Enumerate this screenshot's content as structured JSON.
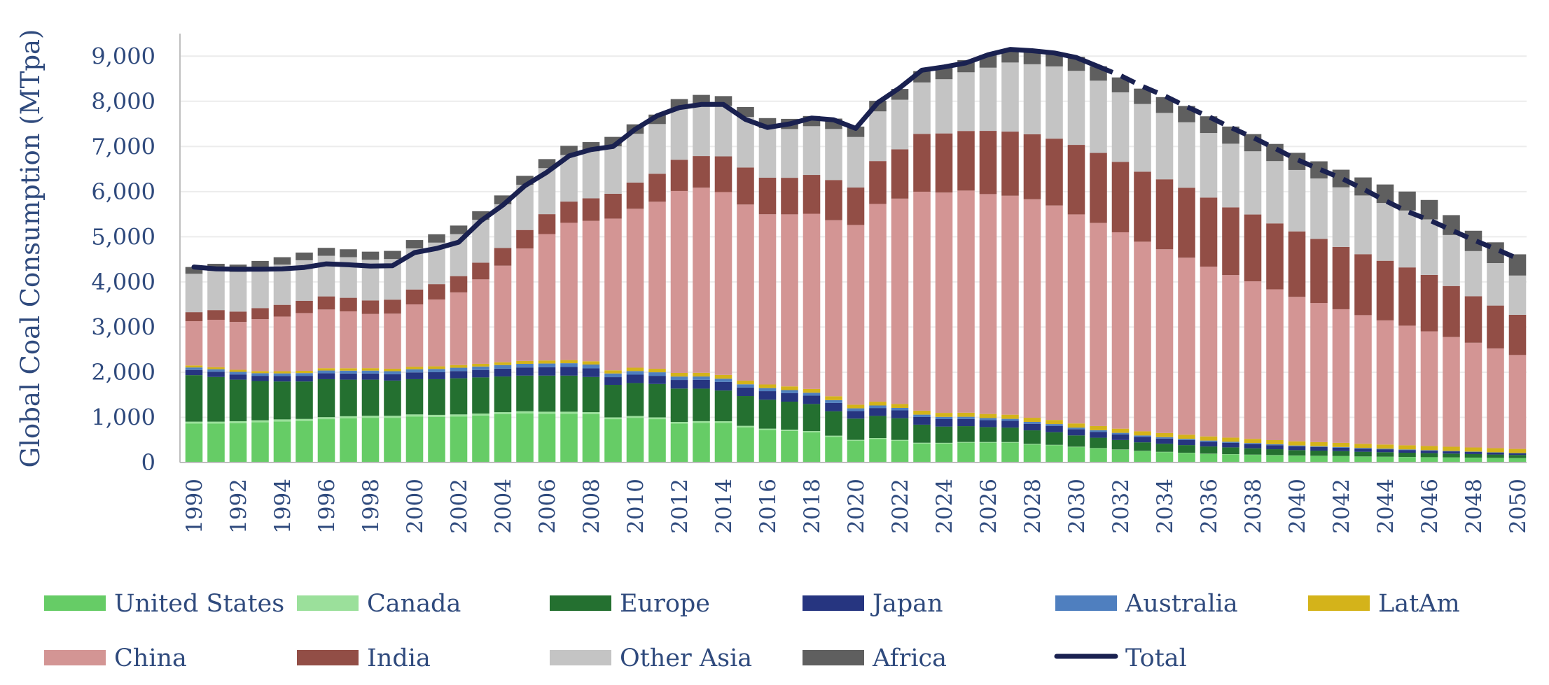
{
  "chart_data": {
    "type": "bar",
    "stacked": true,
    "ylabel": "Global Coal Consumption (MTpa)",
    "xlabel": "",
    "ylim": [
      0,
      9500
    ],
    "yticks": [
      0,
      1000,
      2000,
      3000,
      4000,
      5000,
      6000,
      7000,
      8000,
      9000
    ],
    "ytick_labels": [
      "0",
      "1,000",
      "2,000",
      "3,000",
      "4,000",
      "5,000",
      "6,000",
      "7,000",
      "8,000",
      "9,000"
    ],
    "grid": true,
    "legend_position": "bottom",
    "x": [
      1990,
      1991,
      1992,
      1993,
      1994,
      1995,
      1996,
      1997,
      1998,
      1999,
      2000,
      2001,
      2002,
      2003,
      2004,
      2005,
      2006,
      2007,
      2008,
      2009,
      2010,
      2011,
      2012,
      2013,
      2014,
      2015,
      2016,
      2017,
      2018,
      2019,
      2020,
      2021,
      2022,
      2023,
      2024,
      2025,
      2026,
      2027,
      2028,
      2029,
      2030,
      2031,
      2032,
      2033,
      2034,
      2035,
      2036,
      2037,
      2038,
      2039,
      2040,
      2041,
      2042,
      2043,
      2044,
      2045,
      2046,
      2047,
      2048,
      2049,
      2050
    ],
    "xtick_labels": [
      "1990",
      "1992",
      "1994",
      "1996",
      "1998",
      "2000",
      "2002",
      "2004",
      "2006",
      "2008",
      "2010",
      "2012",
      "2014",
      "2016",
      "2018",
      "2020",
      "2022",
      "2024",
      "2026",
      "2028",
      "2030",
      "2032",
      "2034",
      "2036",
      "2038",
      "2040",
      "2042",
      "2044",
      "2046",
      "2048",
      "2050"
    ],
    "series": [
      {
        "name": "United States",
        "color": "#66cc66",
        "values": [
          860,
          860,
          870,
          890,
          910,
          920,
          960,
          980,
          990,
          990,
          1020,
          1010,
          1020,
          1040,
          1070,
          1090,
          1080,
          1080,
          1070,
          960,
          990,
          960,
          860,
          880,
          880,
          780,
          720,
          700,
          670,
          570,
          480,
          520,
          480,
          420,
          420,
          440,
          440,
          440,
          400,
          380,
          340,
          310,
          280,
          250,
          230,
          210,
          190,
          180,
          170,
          160,
          150,
          145,
          140,
          130,
          125,
          120,
          115,
          110,
          105,
          100,
          95
        ]
      },
      {
        "name": "Canada",
        "color": "#9be09b",
        "values": [
          45,
          45,
          45,
          45,
          45,
          45,
          45,
          45,
          45,
          45,
          45,
          45,
          45,
          45,
          45,
          45,
          45,
          45,
          45,
          40,
          40,
          40,
          38,
          36,
          34,
          32,
          30,
          28,
          26,
          24,
          22,
          22,
          20,
          18,
          16,
          15,
          14,
          13,
          12,
          11,
          10,
          9,
          8,
          7,
          6,
          6,
          5,
          5,
          4,
          4,
          4,
          3,
          3,
          3,
          3,
          2,
          2,
          2,
          2,
          2,
          2
        ]
      },
      {
        "name": "Europe",
        "color": "#247030",
        "values": [
          1030,
          990,
          920,
          870,
          840,
          830,
          840,
          810,
          800,
          780,
          780,
          790,
          800,
          800,
          790,
          790,
          800,
          800,
          780,
          720,
          730,
          740,
          740,
          720,
          680,
          660,
          640,
          620,
          600,
          540,
          470,
          490,
          480,
          400,
          360,
          350,
          330,
          320,
          300,
          280,
          250,
          230,
          210,
          190,
          180,
          170,
          160,
          150,
          140,
          130,
          120,
          115,
          110,
          105,
          100,
          95,
          90,
          85,
          80,
          75,
          70
        ]
      },
      {
        "name": "Japan",
        "color": "#263580",
        "values": [
          115,
          115,
          115,
          115,
          120,
          125,
          130,
          135,
          135,
          140,
          150,
          155,
          160,
          165,
          175,
          180,
          185,
          190,
          190,
          170,
          185,
          180,
          190,
          195,
          190,
          190,
          190,
          190,
          185,
          185,
          170,
          175,
          175,
          170,
          165,
          160,
          155,
          150,
          145,
          140,
          135,
          130,
          125,
          120,
          115,
          110,
          105,
          100,
          95,
          90,
          85,
          80,
          75,
          70,
          65,
          60,
          55,
          50,
          45,
          40,
          35
        ]
      },
      {
        "name": "Australia",
        "color": "#4f7fbf",
        "values": [
          55,
          56,
          57,
          58,
          59,
          60,
          62,
          64,
          65,
          67,
          70,
          72,
          74,
          76,
          78,
          80,
          82,
          84,
          85,
          82,
          80,
          78,
          76,
          74,
          72,
          70,
          68,
          66,
          64,
          62,
          58,
          56,
          54,
          52,
          50,
          48,
          46,
          44,
          42,
          40,
          38,
          36,
          34,
          32,
          30,
          28,
          26,
          24,
          22,
          20,
          18,
          16,
          15,
          14,
          13,
          12,
          11,
          10,
          9,
          8,
          7
        ]
      },
      {
        "name": "LatAm",
        "color": "#d4b31a",
        "values": [
          45,
          45,
          46,
          47,
          48,
          50,
          52,
          54,
          55,
          55,
          57,
          58,
          59,
          60,
          62,
          65,
          68,
          70,
          72,
          70,
          75,
          78,
          80,
          82,
          84,
          82,
          80,
          82,
          84,
          86,
          80,
          84,
          86,
          88,
          88,
          90,
          90,
          92,
          92,
          92,
          92,
          92,
          92,
          92,
          92,
          92,
          92,
          92,
          92,
          92,
          92,
          92,
          92,
          92,
          92,
          92,
          92,
          92,
          92,
          92,
          92
        ]
      },
      {
        "name": "China",
        "color": "#d39594",
        "values": [
          980,
          1050,
          1060,
          1150,
          1210,
          1280,
          1300,
          1260,
          1200,
          1220,
          1380,
          1480,
          1610,
          1870,
          2140,
          2490,
          2800,
          3040,
          3110,
          3360,
          3520,
          3700,
          4030,
          4100,
          4050,
          3900,
          3770,
          3810,
          3880,
          3900,
          3980,
          4380,
          4550,
          4850,
          4880,
          4920,
          4870,
          4850,
          4840,
          4750,
          4630,
          4500,
          4350,
          4200,
          4070,
          3920,
          3760,
          3600,
          3490,
          3340,
          3200,
          3080,
          2960,
          2850,
          2750,
          2650,
          2540,
          2430,
          2320,
          2210,
          2080
        ]
      },
      {
        "name": "India",
        "color": "#924e46",
        "values": [
          200,
          215,
          230,
          245,
          260,
          270,
          290,
          300,
          300,
          310,
          330,
          340,
          360,
          370,
          390,
          410,
          440,
          470,
          500,
          550,
          580,
          620,
          690,
          700,
          790,
          820,
          810,
          810,
          860,
          890,
          830,
          950,
          1090,
          1280,
          1310,
          1320,
          1400,
          1420,
          1440,
          1480,
          1540,
          1550,
          1560,
          1550,
          1550,
          1550,
          1530,
          1500,
          1480,
          1460,
          1450,
          1420,
          1380,
          1350,
          1320,
          1290,
          1250,
          1130,
          1030,
          950,
          890
        ]
      },
      {
        "name": "Other Asia",
        "color": "#c4c4c4",
        "values": [
          850,
          870,
          880,
          880,
          890,
          900,
          900,
          900,
          900,
          900,
          910,
          920,
          930,
          950,
          970,
          1000,
          1020,
          1030,
          1040,
          1050,
          1080,
          1100,
          1130,
          1140,
          1120,
          1120,
          1100,
          1080,
          1080,
          1130,
          1120,
          1100,
          1100,
          1140,
          1200,
          1300,
          1400,
          1530,
          1550,
          1600,
          1640,
          1600,
          1540,
          1500,
          1470,
          1450,
          1430,
          1410,
          1400,
          1380,
          1360,
          1340,
          1320,
          1300,
          1280,
          1260,
          1230,
          1130,
          1000,
          940,
          870
        ]
      },
      {
        "name": "Africa",
        "color": "#5f5f5f",
        "values": [
          150,
          155,
          160,
          165,
          165,
          170,
          175,
          175,
          180,
          180,
          185,
          185,
          190,
          190,
          195,
          200,
          200,
          205,
          205,
          210,
          210,
          210,
          215,
          215,
          215,
          220,
          220,
          225,
          225,
          230,
          230,
          235,
          240,
          250,
          260,
          270,
          280,
          290,
          300,
          300,
          310,
          320,
          330,
          340,
          350,
          360,
          370,
          380,
          380,
          380,
          380,
          380,
          390,
          400,
          410,
          420,
          430,
          440,
          450,
          460,
          470
        ]
      }
    ],
    "total": {
      "name": "Total",
      "color": "#1a2150",
      "solid_until": 2031,
      "dashed_from": 2031,
      "values": [
        4330,
        4290,
        4280,
        4280,
        4290,
        4320,
        4400,
        4380,
        4350,
        4360,
        4650,
        4740,
        4880,
        5350,
        5700,
        6130,
        6430,
        6790,
        6930,
        7000,
        7380,
        7680,
        7860,
        7930,
        7930,
        7600,
        7420,
        7500,
        7630,
        7590,
        7400,
        7970,
        8300,
        8690,
        8760,
        8850,
        9030,
        9150,
        9120,
        9070,
        8970,
        8770,
        8570,
        8330,
        8120,
        7880,
        7660,
        7420,
        7200,
        6960,
        6710,
        6500,
        6300,
        6060,
        5800,
        5560,
        5370,
        5150,
        4930,
        4730,
        4520
      ]
    }
  }
}
